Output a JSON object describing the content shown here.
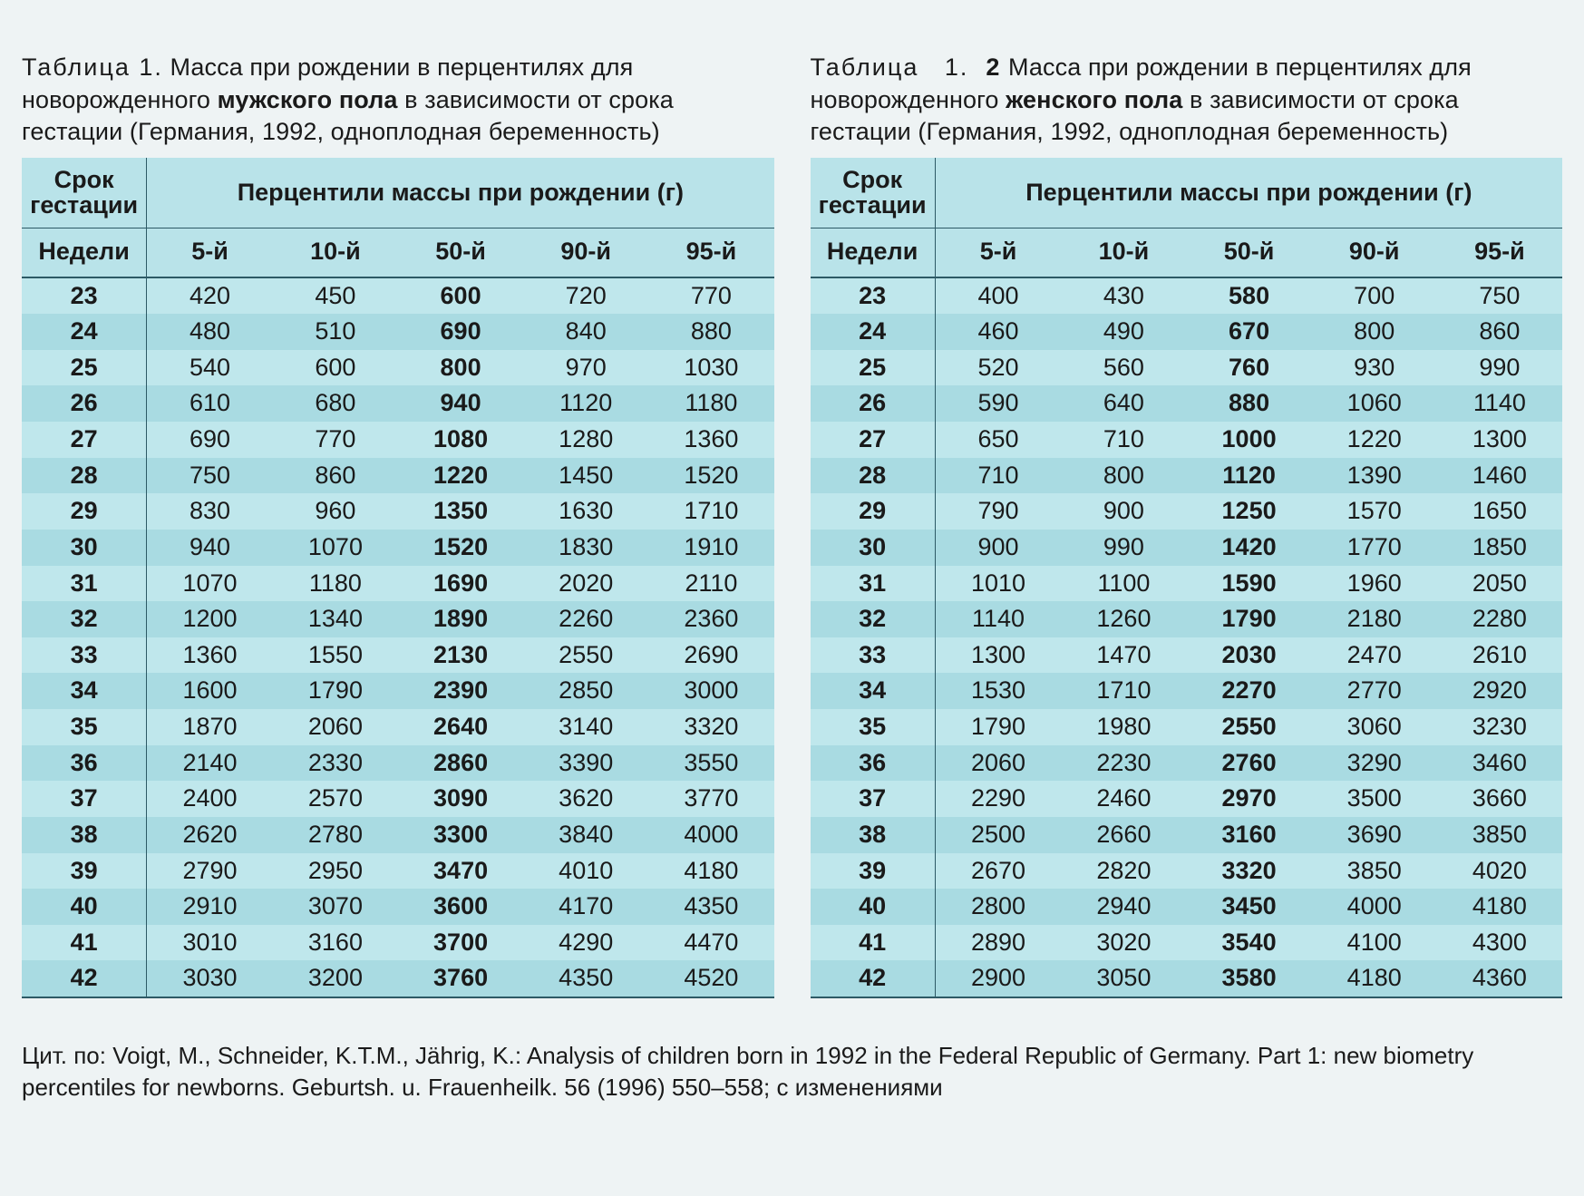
{
  "colors": {
    "page_bg": "#eef3f4",
    "table_bg_odd": "#bfe7ec",
    "table_bg_even": "#a9dbe2",
    "header_bg": "#b9e3e9",
    "rule": "#2d5a66",
    "text": "#1a1a1a"
  },
  "typography": {
    "body_fontsize_pt": 20,
    "caption_fontsize_pt": 20,
    "font_family": "Myriad Pro / Segoe UI / Arial"
  },
  "headers": {
    "gestation_title_l1": "Срок",
    "gestation_title_l2": "гестации",
    "percentile_title": "Перцентили массы при рождении (г)",
    "weeks": "Недели",
    "p5": "5-й",
    "p10": "10-й",
    "p50": "50-й",
    "p90": "90-й",
    "p95": "95-й"
  },
  "male": {
    "caption_label": "Таблица   1.",
    "caption_pre": "      Масса при рождении в перцентилях для новорожденного ",
    "caption_bold": "мужского пола",
    "caption_post": " в зависимости от срока гестации (Германия, 1992, одноплодная беременность)",
    "rows": [
      {
        "wk": "23",
        "p5": "420",
        "p10": "450",
        "p50": "600",
        "p90": "720",
        "p95": "770"
      },
      {
        "wk": "24",
        "p5": "480",
        "p10": "510",
        "p50": "690",
        "p90": "840",
        "p95": "880"
      },
      {
        "wk": "25",
        "p5": "540",
        "p10": "600",
        "p50": "800",
        "p90": "970",
        "p95": "1030"
      },
      {
        "wk": "26",
        "p5": "610",
        "p10": "680",
        "p50": "940",
        "p90": "1120",
        "p95": "1180"
      },
      {
        "wk": "27",
        "p5": "690",
        "p10": "770",
        "p50": "1080",
        "p90": "1280",
        "p95": "1360"
      },
      {
        "wk": "28",
        "p5": "750",
        "p10": "860",
        "p50": "1220",
        "p90": "1450",
        "p95": "1520"
      },
      {
        "wk": "29",
        "p5": "830",
        "p10": "960",
        "p50": "1350",
        "p90": "1630",
        "p95": "1710"
      },
      {
        "wk": "30",
        "p5": "940",
        "p10": "1070",
        "p50": "1520",
        "p90": "1830",
        "p95": "1910"
      },
      {
        "wk": "31",
        "p5": "1070",
        "p10": "1180",
        "p50": "1690",
        "p90": "2020",
        "p95": "2110"
      },
      {
        "wk": "32",
        "p5": "1200",
        "p10": "1340",
        "p50": "1890",
        "p90": "2260",
        "p95": "2360"
      },
      {
        "wk": "33",
        "p5": "1360",
        "p10": "1550",
        "p50": "2130",
        "p90": "2550",
        "p95": "2690"
      },
      {
        "wk": "34",
        "p5": "1600",
        "p10": "1790",
        "p50": "2390",
        "p90": "2850",
        "p95": "3000"
      },
      {
        "wk": "35",
        "p5": "1870",
        "p10": "2060",
        "p50": "2640",
        "p90": "3140",
        "p95": "3320"
      },
      {
        "wk": "36",
        "p5": "2140",
        "p10": "2330",
        "p50": "2860",
        "p90": "3390",
        "p95": "3550"
      },
      {
        "wk": "37",
        "p5": "2400",
        "p10": "2570",
        "p50": "3090",
        "p90": "3620",
        "p95": "3770"
      },
      {
        "wk": "38",
        "p5": "2620",
        "p10": "2780",
        "p50": "3300",
        "p90": "3840",
        "p95": "4000"
      },
      {
        "wk": "39",
        "p5": "2790",
        "p10": "2950",
        "p50": "3470",
        "p90": "4010",
        "p95": "4180"
      },
      {
        "wk": "40",
        "p5": "2910",
        "p10": "3070",
        "p50": "3600",
        "p90": "4170",
        "p95": "4350"
      },
      {
        "wk": "41",
        "p5": "3010",
        "p10": "3160",
        "p50": "3700",
        "p90": "4290",
        "p95": "4470"
      },
      {
        "wk": "42",
        "p5": "3030",
        "p10": "3200",
        "p50": "3760",
        "p90": "4350",
        "p95": "4520"
      }
    ]
  },
  "female": {
    "caption_label": "Таблица   1.  2",
    "caption_pre": "    Масса при рождении в перцентилях для новорожденного ",
    "caption_bold": "женского пола",
    "caption_post": " в зависимости от срока гестации (Германия, 1992, одноплодная беременность)",
    "rows": [
      {
        "wk": "23",
        "p5": "400",
        "p10": "430",
        "p50": "580",
        "p90": "700",
        "p95": "750"
      },
      {
        "wk": "24",
        "p5": "460",
        "p10": "490",
        "p50": "670",
        "p90": "800",
        "p95": "860"
      },
      {
        "wk": "25",
        "p5": "520",
        "p10": "560",
        "p50": "760",
        "p90": "930",
        "p95": "990"
      },
      {
        "wk": "26",
        "p5": "590",
        "p10": "640",
        "p50": "880",
        "p90": "1060",
        "p95": "1140"
      },
      {
        "wk": "27",
        "p5": "650",
        "p10": "710",
        "p50": "1000",
        "p90": "1220",
        "p95": "1300"
      },
      {
        "wk": "28",
        "p5": "710",
        "p10": "800",
        "p50": "1120",
        "p90": "1390",
        "p95": "1460"
      },
      {
        "wk": "29",
        "p5": "790",
        "p10": "900",
        "p50": "1250",
        "p90": "1570",
        "p95": "1650"
      },
      {
        "wk": "30",
        "p5": "900",
        "p10": "990",
        "p50": "1420",
        "p90": "1770",
        "p95": "1850"
      },
      {
        "wk": "31",
        "p5": "1010",
        "p10": "1100",
        "p50": "1590",
        "p90": "1960",
        "p95": "2050"
      },
      {
        "wk": "32",
        "p5": "1140",
        "p10": "1260",
        "p50": "1790",
        "p90": "2180",
        "p95": "2280"
      },
      {
        "wk": "33",
        "p5": "1300",
        "p10": "1470",
        "p50": "2030",
        "p90": "2470",
        "p95": "2610"
      },
      {
        "wk": "34",
        "p5": "1530",
        "p10": "1710",
        "p50": "2270",
        "p90": "2770",
        "p95": "2920"
      },
      {
        "wk": "35",
        "p5": "1790",
        "p10": "1980",
        "p50": "2550",
        "p90": "3060",
        "p95": "3230"
      },
      {
        "wk": "36",
        "p5": "2060",
        "p10": "2230",
        "p50": "2760",
        "p90": "3290",
        "p95": "3460"
      },
      {
        "wk": "37",
        "p5": "2290",
        "p10": "2460",
        "p50": "2970",
        "p90": "3500",
        "p95": "3660"
      },
      {
        "wk": "38",
        "p5": "2500",
        "p10": "2660",
        "p50": "3160",
        "p90": "3690",
        "p95": "3850"
      },
      {
        "wk": "39",
        "p5": "2670",
        "p10": "2820",
        "p50": "3320",
        "p90": "3850",
        "p95": "4020"
      },
      {
        "wk": "40",
        "p5": "2800",
        "p10": "2940",
        "p50": "3450",
        "p90": "4000",
        "p95": "4180"
      },
      {
        "wk": "41",
        "p5": "2890",
        "p10": "3020",
        "p50": "3540",
        "p90": "4100",
        "p95": "4300"
      },
      {
        "wk": "42",
        "p5": "2900",
        "p10": "3050",
        "p50": "3580",
        "p90": "4180",
        "p95": "4360"
      }
    ]
  },
  "citation": "Цит. по: Voigt, M., Schneider, K.T.M., Jährig, K.: Analysis of children born in 1992 in the Federal Republic of Germany. Part 1: new biometry percentiles for newborns. Geburtsh. u. Frauenheilk. 56 (1996) 550–558; с изменениями"
}
